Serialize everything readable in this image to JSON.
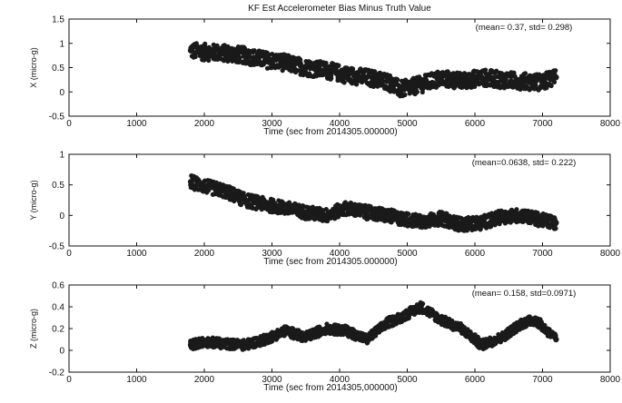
{
  "figure_title": "KF Est  Accelerometer Bias Minus Truth Value",
  "colors": {
    "marker": "#1a1a1a",
    "axes": "#111111",
    "background": "#ffffff"
  },
  "chart_data": [
    {
      "type": "scatter",
      "title": "KF Est  Accelerometer Bias Minus Truth Value",
      "annotation": "(mean=  0.37,  std=  0.298)",
      "ylabel": "X (micro-g)",
      "xlabel": "Time  (sec from 2014305.000000)",
      "xlim": [
        0,
        8000
      ],
      "ylim": [
        -0.5,
        1.5
      ],
      "xticks": [
        "0",
        "1000",
        "2000",
        "3000",
        "4000",
        "5000",
        "6000",
        "7000",
        "8000"
      ],
      "yticks": [
        "-0.5",
        "0",
        "0.5",
        "1",
        "1.5"
      ],
      "grid": false,
      "x": [
        1800,
        2000,
        2300,
        2600,
        2900,
        3200,
        3500,
        3800,
        4100,
        4400,
        4700,
        4900,
        5200,
        5500,
        5800,
        6100,
        6400,
        6700,
        7000,
        7200
      ],
      "values": [
        0.85,
        0.82,
        0.8,
        0.75,
        0.66,
        0.6,
        0.5,
        0.45,
        0.35,
        0.3,
        0.22,
        0.05,
        0.15,
        0.28,
        0.22,
        0.3,
        0.25,
        0.22,
        0.2,
        0.3
      ],
      "spread": 0.17
    },
    {
      "type": "scatter",
      "title": "",
      "annotation": "(mean=0.0638,  std=  0.222)",
      "ylabel": "Y (micro-g)",
      "xlabel": "Time  (sec from 2014305.000000)",
      "xlim": [
        0,
        8000
      ],
      "ylim": [
        -0.5,
        1
      ],
      "xticks": [
        "0",
        "1000",
        "2000",
        "3000",
        "4000",
        "5000",
        "6000",
        "7000",
        "8000"
      ],
      "yticks": [
        "-0.5",
        "0",
        "0.5",
        "1"
      ],
      "grid": false,
      "x": [
        1800,
        2000,
        2300,
        2600,
        2900,
        3200,
        3500,
        3800,
        4100,
        4400,
        4700,
        4900,
        5200,
        5500,
        5800,
        6100,
        6400,
        6700,
        7000,
        7200
      ],
      "values": [
        0.55,
        0.48,
        0.4,
        0.25,
        0.18,
        0.12,
        0.05,
        0.0,
        0.12,
        0.05,
        0.0,
        -0.05,
        -0.1,
        -0.05,
        -0.15,
        -0.12,
        -0.02,
        0.0,
        -0.08,
        -0.12
      ],
      "spread": 0.11
    },
    {
      "type": "scatter",
      "title": "",
      "annotation": "(mean=  0.158,  std=0.0971)",
      "ylabel": "Z (micro-g)",
      "xlabel": "Time  (sec from 2014305,000000)",
      "xlim": [
        0,
        8000
      ],
      "ylim": [
        -0.2,
        0.6
      ],
      "xticks": [
        "0",
        "1000",
        "2000",
        "3000",
        "4000",
        "5000",
        "6000",
        "7000",
        "8000"
      ],
      "yticks": [
        "-0.2",
        "0",
        "0.2",
        "0.4",
        "0.6"
      ],
      "grid": false,
      "x": [
        1800,
        2000,
        2300,
        2600,
        2900,
        3200,
        3500,
        3800,
        4100,
        4400,
        4700,
        4900,
        5200,
        5500,
        5800,
        6100,
        6400,
        6700,
        6900,
        7200
      ],
      "values": [
        0.05,
        0.08,
        0.06,
        0.05,
        0.1,
        0.18,
        0.12,
        0.2,
        0.18,
        0.1,
        0.25,
        0.3,
        0.4,
        0.28,
        0.2,
        0.05,
        0.12,
        0.25,
        0.28,
        0.1
      ],
      "spread": 0.045
    }
  ]
}
